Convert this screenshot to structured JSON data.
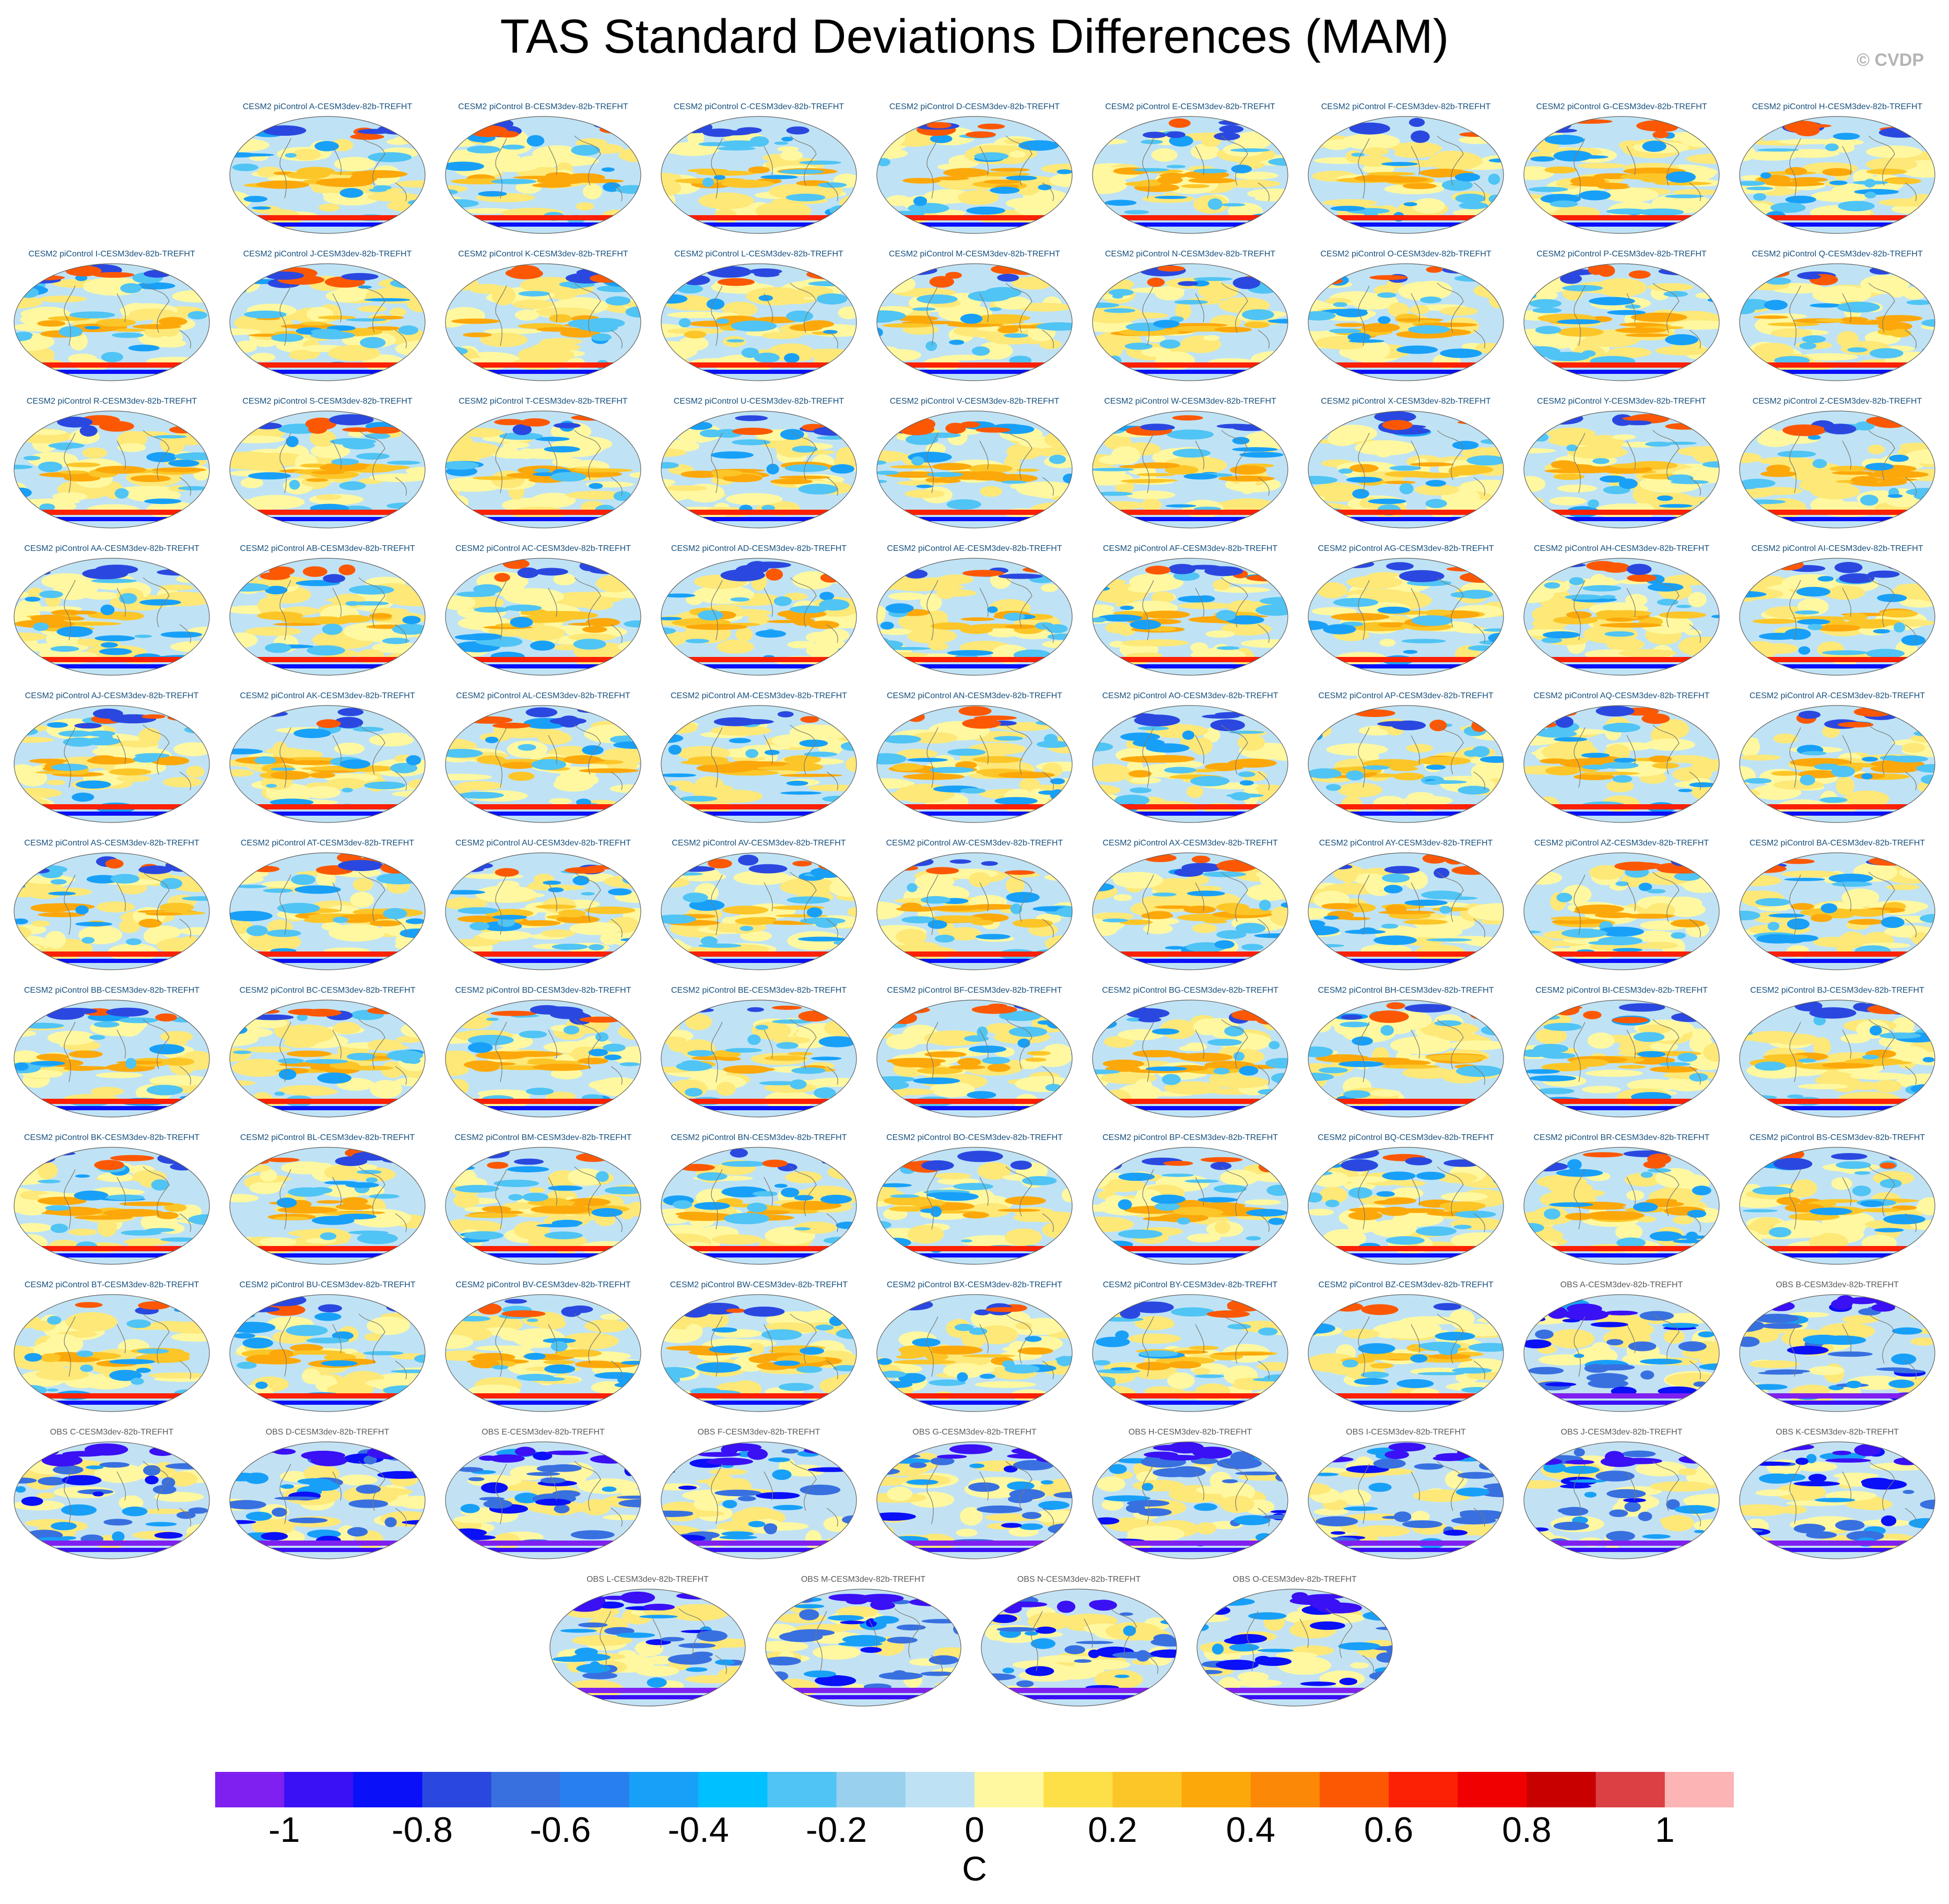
{
  "title": "TAS Standard Deviations Differences (MAM)",
  "credit": "© CVDP",
  "panels": [
    {
      "title": "CESM2 piControl A-CESM3dev-82b-TREFHT",
      "kind": "cesm"
    },
    {
      "title": "CESM2 piControl B-CESM3dev-82b-TREFHT",
      "kind": "cesm"
    },
    {
      "title": "CESM2 piControl C-CESM3dev-82b-TREFHT",
      "kind": "cesm"
    },
    {
      "title": "CESM2 piControl D-CESM3dev-82b-TREFHT",
      "kind": "cesm"
    },
    {
      "title": "CESM2 piControl E-CESM3dev-82b-TREFHT",
      "kind": "cesm"
    },
    {
      "title": "CESM2 piControl F-CESM3dev-82b-TREFHT",
      "kind": "cesm"
    },
    {
      "title": "CESM2 piControl G-CESM3dev-82b-TREFHT",
      "kind": "cesm"
    },
    {
      "title": "CESM2 piControl H-CESM3dev-82b-TREFHT",
      "kind": "cesm"
    },
    {
      "title": "CESM2 piControl I-CESM3dev-82b-TREFHT",
      "kind": "cesm"
    },
    {
      "title": "CESM2 piControl J-CESM3dev-82b-TREFHT",
      "kind": "cesm"
    },
    {
      "title": "CESM2 piControl K-CESM3dev-82b-TREFHT",
      "kind": "cesm"
    },
    {
      "title": "CESM2 piControl L-CESM3dev-82b-TREFHT",
      "kind": "cesm"
    },
    {
      "title": "CESM2 piControl M-CESM3dev-82b-TREFHT",
      "kind": "cesm"
    },
    {
      "title": "CESM2 piControl N-CESM3dev-82b-TREFHT",
      "kind": "cesm"
    },
    {
      "title": "CESM2 piControl O-CESM3dev-82b-TREFHT",
      "kind": "cesm"
    },
    {
      "title": "CESM2 piControl P-CESM3dev-82b-TREFHT",
      "kind": "cesm"
    },
    {
      "title": "CESM2 piControl Q-CESM3dev-82b-TREFHT",
      "kind": "cesm"
    },
    {
      "title": "CESM2 piControl R-CESM3dev-82b-TREFHT",
      "kind": "cesm"
    },
    {
      "title": "CESM2 piControl S-CESM3dev-82b-TREFHT",
      "kind": "cesm"
    },
    {
      "title": "CESM2 piControl T-CESM3dev-82b-TREFHT",
      "kind": "cesm"
    },
    {
      "title": "CESM2 piControl U-CESM3dev-82b-TREFHT",
      "kind": "cesm"
    },
    {
      "title": "CESM2 piControl V-CESM3dev-82b-TREFHT",
      "kind": "cesm"
    },
    {
      "title": "CESM2 piControl W-CESM3dev-82b-TREFHT",
      "kind": "cesm"
    },
    {
      "title": "CESM2 piControl X-CESM3dev-82b-TREFHT",
      "kind": "cesm"
    },
    {
      "title": "CESM2 piControl Y-CESM3dev-82b-TREFHT",
      "kind": "cesm"
    },
    {
      "title": "CESM2 piControl Z-CESM3dev-82b-TREFHT",
      "kind": "cesm"
    },
    {
      "title": "CESM2 piControl AA-CESM3dev-82b-TREFHT",
      "kind": "cesm"
    },
    {
      "title": "CESM2 piControl AB-CESM3dev-82b-TREFHT",
      "kind": "cesm"
    },
    {
      "title": "CESM2 piControl AC-CESM3dev-82b-TREFHT",
      "kind": "cesm"
    },
    {
      "title": "CESM2 piControl AD-CESM3dev-82b-TREFHT",
      "kind": "cesm"
    },
    {
      "title": "CESM2 piControl AE-CESM3dev-82b-TREFHT",
      "kind": "cesm"
    },
    {
      "title": "CESM2 piControl AF-CESM3dev-82b-TREFHT",
      "kind": "cesm"
    },
    {
      "title": "CESM2 piControl AG-CESM3dev-82b-TREFHT",
      "kind": "cesm"
    },
    {
      "title": "CESM2 piControl AH-CESM3dev-82b-TREFHT",
      "kind": "cesm"
    },
    {
      "title": "CESM2 piControl AI-CESM3dev-82b-TREFHT",
      "kind": "cesm"
    },
    {
      "title": "CESM2 piControl AJ-CESM3dev-82b-TREFHT",
      "kind": "cesm"
    },
    {
      "title": "CESM2 piControl AK-CESM3dev-82b-TREFHT",
      "kind": "cesm"
    },
    {
      "title": "CESM2 piControl AL-CESM3dev-82b-TREFHT",
      "kind": "cesm"
    },
    {
      "title": "CESM2 piControl AM-CESM3dev-82b-TREFHT",
      "kind": "cesm"
    },
    {
      "title": "CESM2 piControl AN-CESM3dev-82b-TREFHT",
      "kind": "cesm"
    },
    {
      "title": "CESM2 piControl AO-CESM3dev-82b-TREFHT",
      "kind": "cesm"
    },
    {
      "title": "CESM2 piControl AP-CESM3dev-82b-TREFHT",
      "kind": "cesm"
    },
    {
      "title": "CESM2 piControl AQ-CESM3dev-82b-TREFHT",
      "kind": "cesm"
    },
    {
      "title": "CESM2 piControl AR-CESM3dev-82b-TREFHT",
      "kind": "cesm"
    },
    {
      "title": "CESM2 piControl AS-CESM3dev-82b-TREFHT",
      "kind": "cesm"
    },
    {
      "title": "CESM2 piControl AT-CESM3dev-82b-TREFHT",
      "kind": "cesm"
    },
    {
      "title": "CESM2 piControl AU-CESM3dev-82b-TREFHT",
      "kind": "cesm"
    },
    {
      "title": "CESM2 piControl AV-CESM3dev-82b-TREFHT",
      "kind": "cesm"
    },
    {
      "title": "CESM2 piControl AW-CESM3dev-82b-TREFHT",
      "kind": "cesm"
    },
    {
      "title": "CESM2 piControl AX-CESM3dev-82b-TREFHT",
      "kind": "cesm"
    },
    {
      "title": "CESM2 piControl AY-CESM3dev-82b-TREFHT",
      "kind": "cesm"
    },
    {
      "title": "CESM2 piControl AZ-CESM3dev-82b-TREFHT",
      "kind": "cesm"
    },
    {
      "title": "CESM2 piControl BA-CESM3dev-82b-TREFHT",
      "kind": "cesm"
    },
    {
      "title": "CESM2 piControl BB-CESM3dev-82b-TREFHT",
      "kind": "cesm"
    },
    {
      "title": "CESM2 piControl BC-CESM3dev-82b-TREFHT",
      "kind": "cesm"
    },
    {
      "title": "CESM2 piControl BD-CESM3dev-82b-TREFHT",
      "kind": "cesm"
    },
    {
      "title": "CESM2 piControl BE-CESM3dev-82b-TREFHT",
      "kind": "cesm"
    },
    {
      "title": "CESM2 piControl BF-CESM3dev-82b-TREFHT",
      "kind": "cesm"
    },
    {
      "title": "CESM2 piControl BG-CESM3dev-82b-TREFHT",
      "kind": "cesm"
    },
    {
      "title": "CESM2 piControl BH-CESM3dev-82b-TREFHT",
      "kind": "cesm"
    },
    {
      "title": "CESM2 piControl BI-CESM3dev-82b-TREFHT",
      "kind": "cesm"
    },
    {
      "title": "CESM2 piControl BJ-CESM3dev-82b-TREFHT",
      "kind": "cesm"
    },
    {
      "title": "CESM2 piControl BK-CESM3dev-82b-TREFHT",
      "kind": "cesm"
    },
    {
      "title": "CESM2 piControl BL-CESM3dev-82b-TREFHT",
      "kind": "cesm"
    },
    {
      "title": "CESM2 piControl BM-CESM3dev-82b-TREFHT",
      "kind": "cesm"
    },
    {
      "title": "CESM2 piControl BN-CESM3dev-82b-TREFHT",
      "kind": "cesm"
    },
    {
      "title": "CESM2 piControl BO-CESM3dev-82b-TREFHT",
      "kind": "cesm"
    },
    {
      "title": "CESM2 piControl BP-CESM3dev-82b-TREFHT",
      "kind": "cesm"
    },
    {
      "title": "CESM2 piControl BQ-CESM3dev-82b-TREFHT",
      "kind": "cesm"
    },
    {
      "title": "CESM2 piControl BR-CESM3dev-82b-TREFHT",
      "kind": "cesm"
    },
    {
      "title": "CESM2 piControl BS-CESM3dev-82b-TREFHT",
      "kind": "cesm"
    },
    {
      "title": "CESM2 piControl BT-CESM3dev-82b-TREFHT",
      "kind": "cesm"
    },
    {
      "title": "CESM2 piControl BU-CESM3dev-82b-TREFHT",
      "kind": "cesm"
    },
    {
      "title": "CESM2 piControl BV-CESM3dev-82b-TREFHT",
      "kind": "cesm"
    },
    {
      "title": "CESM2 piControl BW-CESM3dev-82b-TREFHT",
      "kind": "cesm"
    },
    {
      "title": "CESM2 piControl BX-CESM3dev-82b-TREFHT",
      "kind": "cesm"
    },
    {
      "title": "CESM2 piControl BY-CESM3dev-82b-TREFHT",
      "kind": "cesm"
    },
    {
      "title": "CESM2 piControl BZ-CESM3dev-82b-TREFHT",
      "kind": "cesm"
    },
    {
      "title": "OBS A-CESM3dev-82b-TREFHT",
      "kind": "obs"
    },
    {
      "title": "OBS B-CESM3dev-82b-TREFHT",
      "kind": "obs"
    },
    {
      "title": "OBS C-CESM3dev-82b-TREFHT",
      "kind": "obs"
    },
    {
      "title": "OBS D-CESM3dev-82b-TREFHT",
      "kind": "obs"
    },
    {
      "title": "OBS E-CESM3dev-82b-TREFHT",
      "kind": "obs"
    },
    {
      "title": "OBS F-CESM3dev-82b-TREFHT",
      "kind": "obs"
    },
    {
      "title": "OBS G-CESM3dev-82b-TREFHT",
      "kind": "obs"
    },
    {
      "title": "OBS H-CESM3dev-82b-TREFHT",
      "kind": "obs"
    },
    {
      "title": "OBS I-CESM3dev-82b-TREFHT",
      "kind": "obs"
    },
    {
      "title": "OBS J-CESM3dev-82b-TREFHT",
      "kind": "obs"
    },
    {
      "title": "OBS K-CESM3dev-82b-TREFHT",
      "kind": "obs"
    },
    {
      "title": "OBS L-CESM3dev-82b-TREFHT",
      "kind": "obs"
    },
    {
      "title": "OBS M-CESM3dev-82b-TREFHT",
      "kind": "obs"
    },
    {
      "title": "OBS N-CESM3dev-82b-TREFHT",
      "kind": "obs"
    },
    {
      "title": "OBS O-CESM3dev-82b-TREFHT",
      "kind": "obs"
    }
  ],
  "chart_data": {
    "type": "heatmap",
    "title": "TAS Standard Deviations Differences (MAM)",
    "colorbar": {
      "unit": "C",
      "levels": [
        -1.1,
        -1.0,
        -0.9,
        -0.8,
        -0.7,
        -0.6,
        -0.5,
        -0.4,
        -0.3,
        -0.2,
        -0.1,
        0.0,
        0.1,
        0.2,
        0.3,
        0.4,
        0.5,
        0.6,
        0.7,
        0.8,
        0.9,
        1.0,
        1.1
      ],
      "tick_values": [
        -1,
        -0.8,
        -0.6,
        -0.4,
        -0.2,
        0,
        0.2,
        0.4,
        0.6,
        0.8,
        1
      ],
      "tick_labels": [
        "-1",
        "-0.8",
        "-0.6",
        "-0.4",
        "-0.2",
        "0",
        "0.2",
        "0.4",
        "0.6",
        "0.8",
        "1"
      ],
      "colors": [
        "#8020f0",
        "#3a10f5",
        "#0a10f8",
        "#2a48e0",
        "#3870e0",
        "#2880f0",
        "#18a0f8",
        "#00c0ff",
        "#50c4f4",
        "#98d0ee",
        "#bee2f4",
        "#fff8a0",
        "#fde048",
        "#fcc628",
        "#fca80a",
        "#fc8808",
        "#fc5804",
        "#fc2004",
        "#f00000",
        "#c80000",
        "#dc4044",
        "#fcb4b4"
      ]
    }
  }
}
